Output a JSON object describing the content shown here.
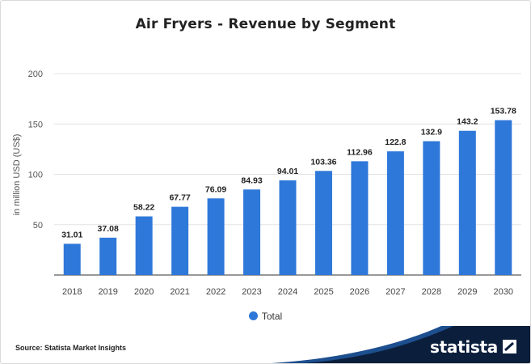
{
  "title": "Air Fryers - Revenue by Segment",
  "source": "Source: Statista Market Insights",
  "brand": "statista",
  "colors": {
    "bar": "#2e78d9",
    "band_dark": "#0b1f3c",
    "band_mid": "#1d4f8f"
  },
  "chart_data": {
    "type": "bar",
    "categories": [
      "2018",
      "2019",
      "2020",
      "2021",
      "2022",
      "2023",
      "2024",
      "2025",
      "2026",
      "2027",
      "2028",
      "2029",
      "2030"
    ],
    "series": [
      {
        "name": "Total",
        "values": [
          31.01,
          37.08,
          58.22,
          67.77,
          76.09,
          84.93,
          94.01,
          103.36,
          112.96,
          122.8,
          132.9,
          143.2,
          153.78
        ]
      }
    ],
    "value_labels": [
      "31.01",
      "37.08",
      "58.22",
      "67.77",
      "76.09",
      "84.93",
      "94.01",
      "103.36",
      "112.96",
      "122.8",
      "132.9",
      "143.2",
      "153.78"
    ],
    "ylabel": "in million USD (US$)",
    "ylim": [
      0,
      200
    ],
    "yticks": [
      50,
      100,
      150,
      200
    ],
    "grid": true,
    "legend_position": "bottom-center"
  }
}
